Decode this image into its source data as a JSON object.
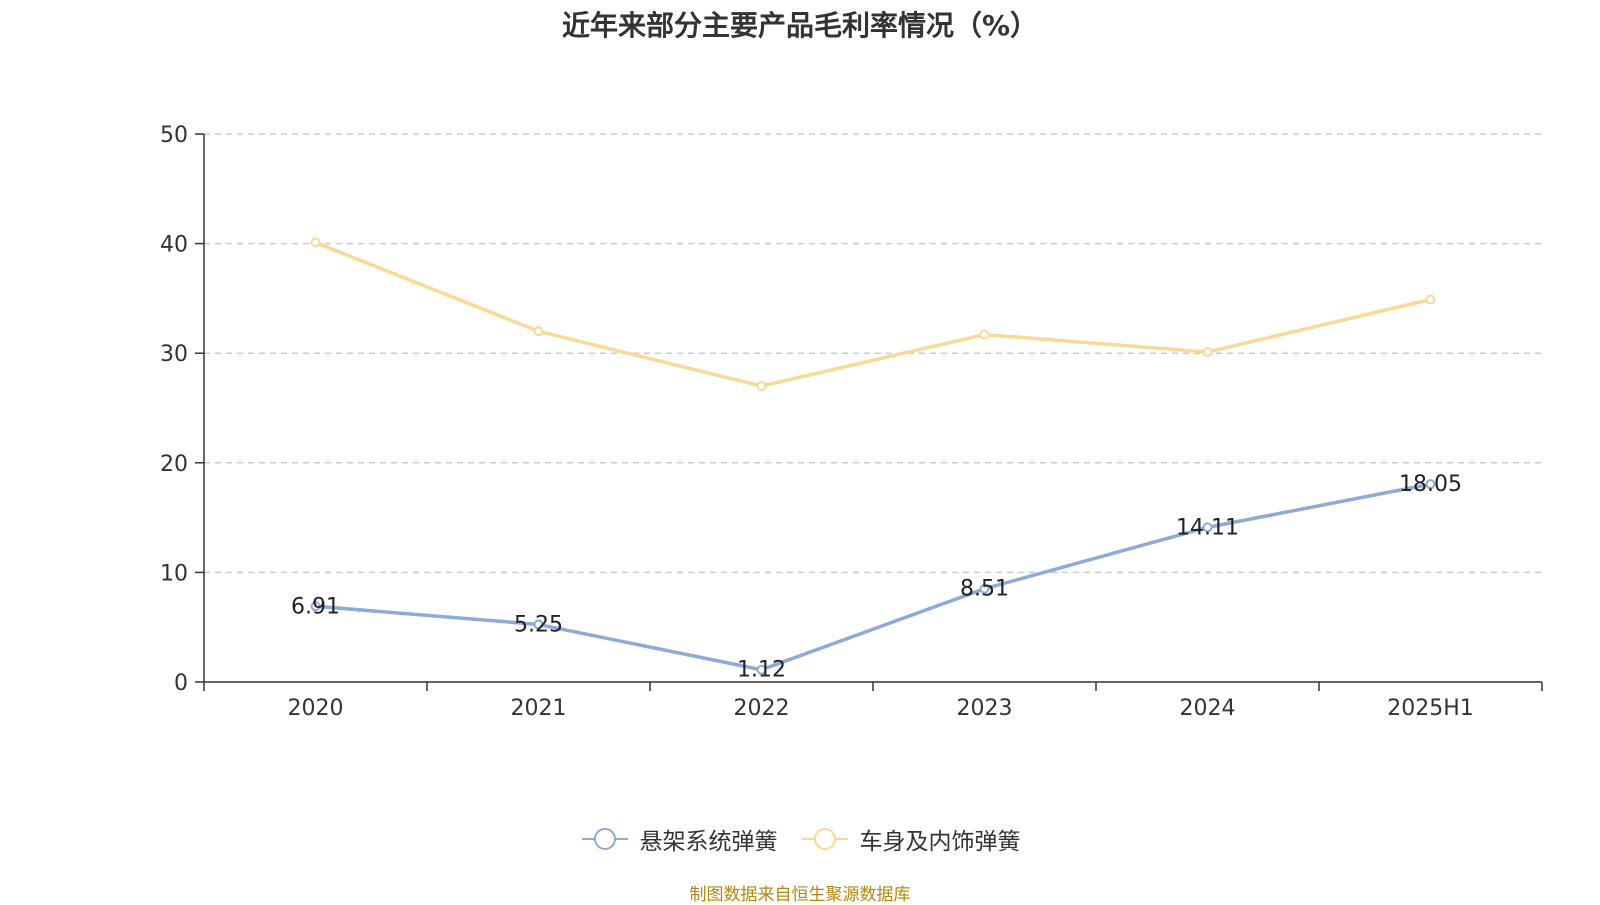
{
  "chart_data": {
    "type": "line",
    "title": "近年来部分主要产品毛利率情况（%）",
    "categories": [
      "2020",
      "2021",
      "2022",
      "2023",
      "2024",
      "2025H1"
    ],
    "ylim": [
      0,
      50
    ],
    "yticks": [
      0,
      10,
      20,
      30,
      40,
      50
    ],
    "grid": true,
    "legend_position": "bottom",
    "series": [
      {
        "name": "悬架系统弹簧",
        "color": "#8eaad6",
        "values": [
          6.91,
          5.25,
          1.12,
          8.51,
          14.11,
          18.05
        ],
        "labels": [
          "6.91",
          "5.25",
          "1.12",
          "8.51",
          "14.11",
          "18.05"
        ],
        "show_labels": true
      },
      {
        "name": "车身及内饰弹簧",
        "color": "#fad896",
        "values": [
          40.1,
          32.0,
          27.0,
          31.7,
          30.1,
          34.9
        ],
        "show_labels": false
      }
    ]
  },
  "source": "制图数据来自恒生聚源数据库"
}
